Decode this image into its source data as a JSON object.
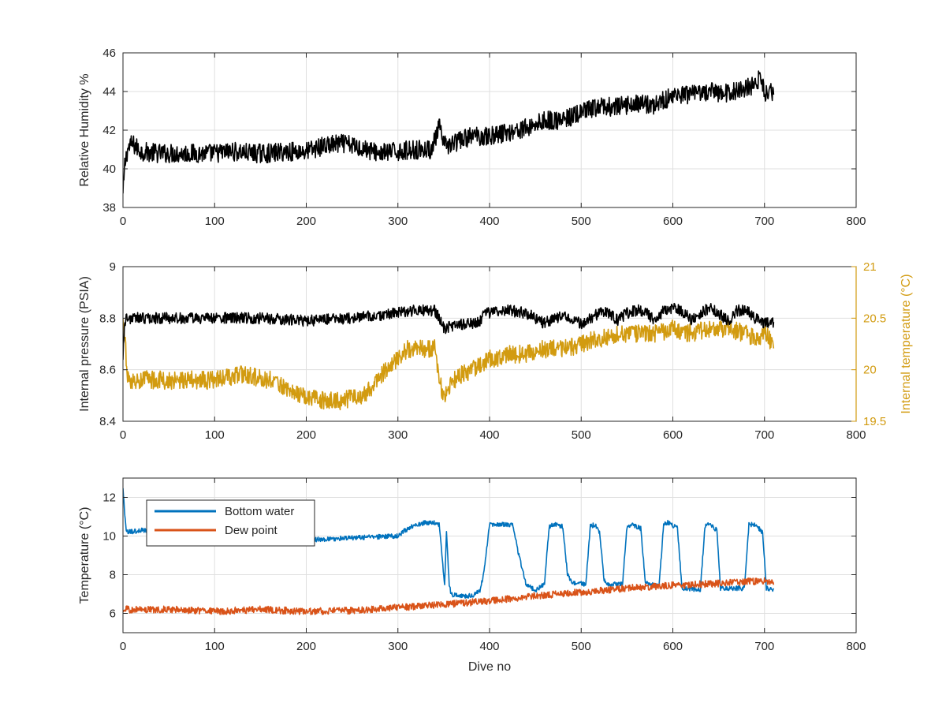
{
  "chart_data": [
    {
      "type": "line",
      "xlim": [
        0,
        800
      ],
      "ylim": [
        38,
        46
      ],
      "xticks": [
        0,
        100,
        200,
        300,
        400,
        500,
        600,
        700,
        800
      ],
      "yticks": [
        38,
        40,
        42,
        44,
        46
      ],
      "xlabel": "",
      "ylabel": "Relative Humidity %",
      "grid": true,
      "series": [
        {
          "color": "#000000",
          "x": [
            0,
            2,
            5,
            10,
            20,
            40,
            60,
            80,
            100,
            120,
            140,
            160,
            180,
            200,
            220,
            240,
            260,
            280,
            300,
            320,
            335,
            340,
            345,
            350,
            360,
            380,
            400,
            420,
            440,
            460,
            480,
            500,
            520,
            540,
            560,
            580,
            600,
            620,
            640,
            660,
            680,
            690,
            695,
            700,
            705,
            710
          ],
          "y": [
            38.6,
            40.2,
            41.0,
            41.3,
            40.9,
            40.8,
            40.8,
            40.8,
            40.8,
            40.9,
            40.8,
            40.8,
            40.9,
            40.9,
            41.2,
            41.3,
            41.1,
            40.8,
            40.9,
            41.0,
            41.0,
            41.4,
            42.2,
            41.2,
            41.3,
            41.7,
            41.7,
            41.9,
            42.1,
            42.5,
            42.5,
            42.9,
            43.2,
            43.2,
            43.4,
            43.3,
            43.8,
            43.8,
            44.0,
            43.9,
            44.2,
            44.3,
            44.8,
            43.9,
            44.0,
            44.0
          ],
          "noise": 0.5
        }
      ]
    },
    {
      "type": "line",
      "xlim": [
        0,
        800
      ],
      "ylim": [
        8.4,
        9
      ],
      "xticks": [
        0,
        100,
        200,
        300,
        400,
        500,
        600,
        700,
        800
      ],
      "yticks": [
        8.4,
        8.6,
        8.8,
        9
      ],
      "xlabel": "",
      "ylabel": "Internal pressure (PSIA)",
      "grid": true,
      "series": [
        {
          "color": "#000000",
          "x": [
            0,
            2,
            5,
            10,
            50,
            100,
            150,
            200,
            250,
            280,
            300,
            320,
            340,
            345,
            350,
            360,
            380,
            390,
            395,
            420,
            440,
            455,
            460,
            470,
            480,
            490,
            500,
            520,
            530,
            540,
            550,
            560,
            570,
            580,
            590,
            600,
            610,
            620,
            630,
            640,
            650,
            660,
            670,
            680,
            690,
            700,
            710
          ],
          "y": [
            8.66,
            8.79,
            8.8,
            8.8,
            8.8,
            8.8,
            8.8,
            8.79,
            8.8,
            8.81,
            8.82,
            8.83,
            8.83,
            8.8,
            8.76,
            8.77,
            8.78,
            8.79,
            8.82,
            8.83,
            8.82,
            8.79,
            8.78,
            8.8,
            8.81,
            8.79,
            8.78,
            8.82,
            8.82,
            8.79,
            8.82,
            8.83,
            8.83,
            8.79,
            8.83,
            8.84,
            8.83,
            8.79,
            8.82,
            8.84,
            8.82,
            8.79,
            8.83,
            8.83,
            8.8,
            8.78,
            8.78
          ],
          "noise": 0.022
        }
      ],
      "y2label": "Internal temperature (°C)",
      "y2lim": [
        19.5,
        21
      ],
      "y2ticks": [
        19.5,
        20,
        20.5,
        21
      ],
      "series_right": [
        {
          "color": "#D29B10",
          "x": [
            0,
            2,
            5,
            8,
            15,
            40,
            70,
            100,
            130,
            160,
            180,
            200,
            220,
            240,
            260,
            275,
            290,
            300,
            310,
            330,
            340,
            345,
            350,
            360,
            380,
            390,
            400,
            420,
            440,
            460,
            480,
            500,
            520,
            540,
            560,
            580,
            600,
            620,
            640,
            660,
            680,
            695,
            700,
            705,
            710
          ],
          "y": [
            20.55,
            20.3,
            19.95,
            19.85,
            19.9,
            19.9,
            19.9,
            19.9,
            19.95,
            19.9,
            19.8,
            19.75,
            19.7,
            19.7,
            19.75,
            19.85,
            20.05,
            20.1,
            20.2,
            20.2,
            20.2,
            19.9,
            19.75,
            19.9,
            20.0,
            20.05,
            20.1,
            20.15,
            20.15,
            20.2,
            20.2,
            20.25,
            20.3,
            20.35,
            20.35,
            20.35,
            20.4,
            20.35,
            20.4,
            20.4,
            20.35,
            20.3,
            20.4,
            20.3,
            20.25
          ],
          "noise": 0.09
        }
      ]
    },
    {
      "type": "line",
      "xlim": [
        0,
        800
      ],
      "ylim": [
        5,
        13
      ],
      "xticks": [
        0,
        100,
        200,
        300,
        400,
        500,
        600,
        700,
        800
      ],
      "yticks": [
        6,
        8,
        10,
        12
      ],
      "xlabel": "Dive no",
      "ylabel": "Temperature (°C)",
      "grid": true,
      "legend_placement": "top-left",
      "series": [
        {
          "name": "Bottom water",
          "color": "#0072BD",
          "x": [
            0,
            2,
            4,
            5,
            20,
            100,
            200,
            300,
            305,
            315,
            330,
            340,
            345,
            348,
            351,
            353,
            356,
            358,
            365,
            380,
            390,
            395,
            400,
            425,
            432,
            440,
            450,
            460,
            465,
            470,
            480,
            485,
            490,
            505,
            510,
            515,
            520,
            525,
            530,
            545,
            550,
            555,
            565,
            570,
            575,
            585,
            590,
            595,
            605,
            610,
            615,
            630,
            635,
            640,
            648,
            652,
            660,
            678,
            683,
            690,
            698,
            702,
            710
          ],
          "y": [
            12.5,
            11.0,
            10.2,
            10.2,
            10.3,
            10.2,
            9.8,
            10.0,
            10.2,
            10.5,
            10.7,
            10.7,
            10.6,
            9.0,
            7.5,
            10.3,
            7.5,
            7.0,
            6.9,
            6.9,
            7.2,
            8.5,
            10.6,
            10.6,
            9.0,
            7.5,
            7.2,
            7.5,
            10.5,
            10.6,
            10.5,
            8.0,
            7.6,
            7.5,
            10.5,
            10.6,
            10.2,
            7.7,
            7.5,
            7.5,
            10.5,
            10.6,
            10.4,
            7.6,
            7.5,
            7.4,
            10.6,
            10.7,
            10.4,
            7.3,
            7.3,
            7.2,
            10.5,
            10.6,
            10.3,
            7.3,
            7.3,
            7.3,
            10.6,
            10.6,
            10.2,
            7.3,
            7.2
          ],
          "noise": 0.12
        },
        {
          "name": "Dew point",
          "color": "#D95319",
          "x": [
            0,
            50,
            100,
            150,
            200,
            250,
            300,
            350,
            400,
            450,
            500,
            550,
            600,
            650,
            700,
            710
          ],
          "y": [
            6.2,
            6.2,
            6.1,
            6.2,
            6.1,
            6.15,
            6.3,
            6.45,
            6.65,
            6.9,
            7.1,
            7.3,
            7.45,
            7.55,
            7.7,
            7.6
          ],
          "noise": 0.18
        }
      ]
    }
  ]
}
